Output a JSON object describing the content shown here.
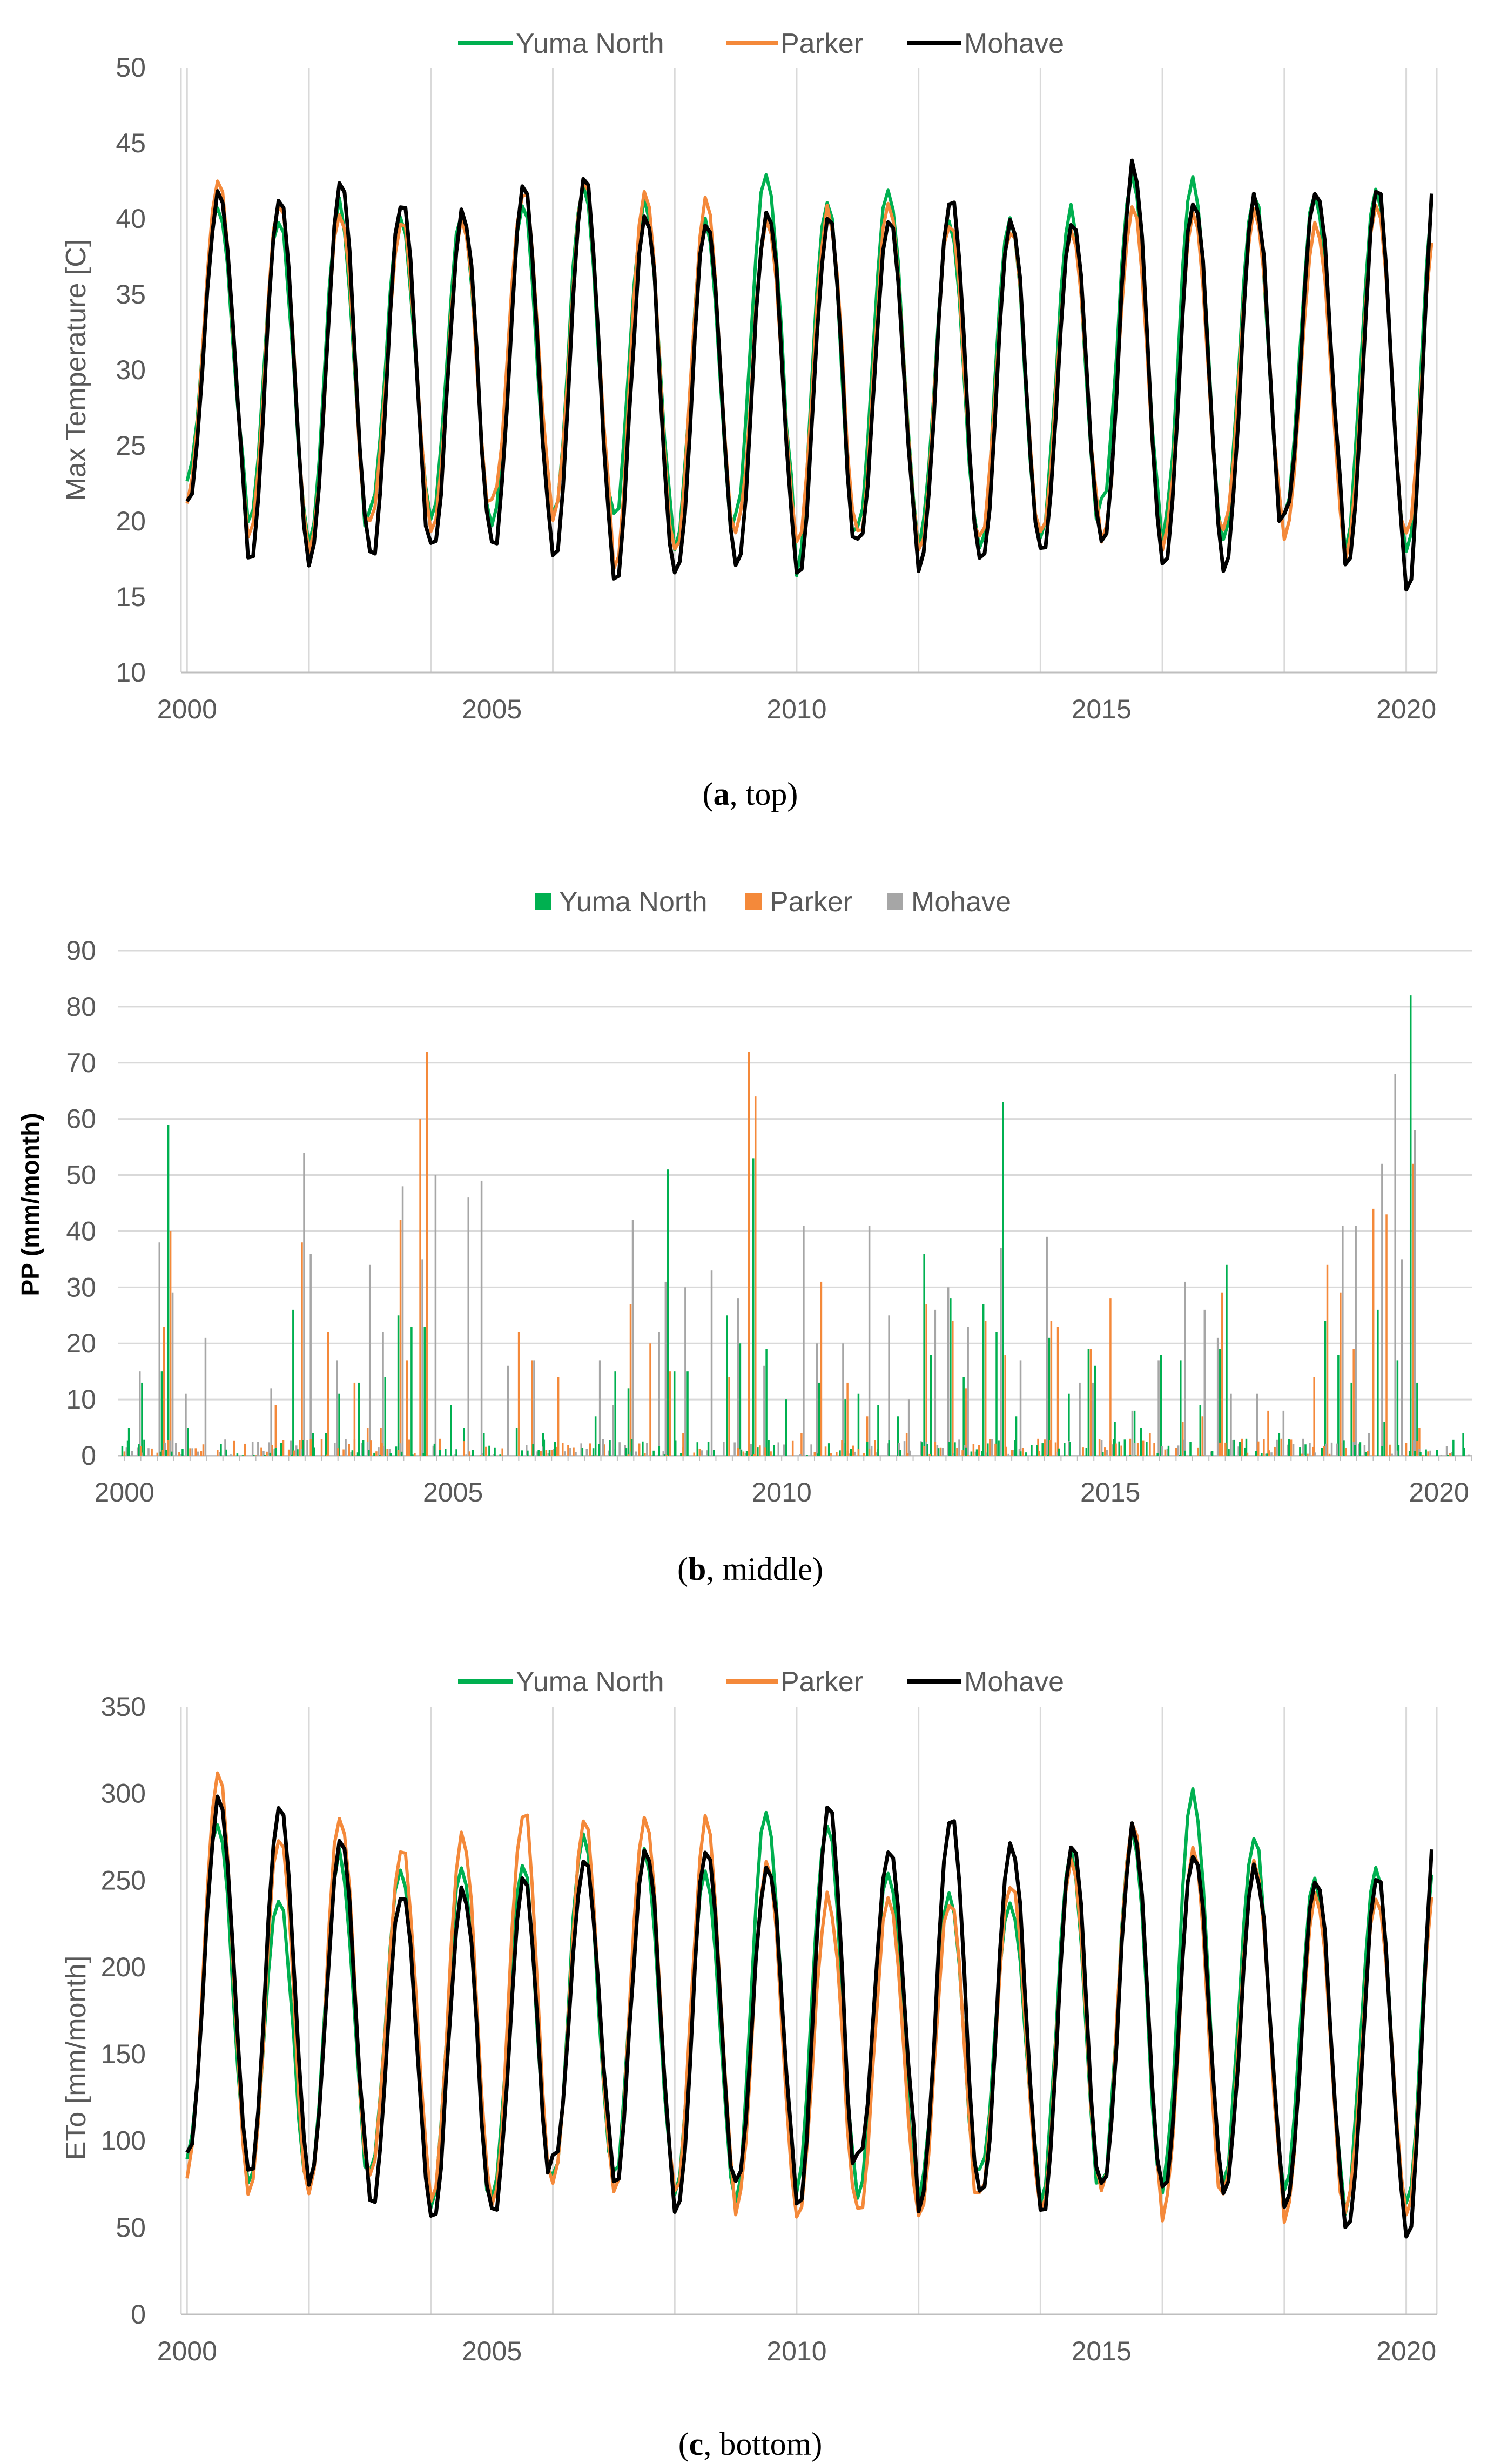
{
  "colors": {
    "yuma_north": "#00b050",
    "parker": "#f4893a",
    "mohave": "#000000",
    "mohave_bar": "#a6a6a6"
  },
  "chart_data": [
    {
      "type": "line",
      "ylabel": "Max Temperature [C]",
      "caption_letter": "a",
      "caption_rest": ", top)",
      "ylim": [
        10,
        50
      ],
      "yticks": [
        "10",
        "15",
        "20",
        "25",
        "30",
        "35",
        "40",
        "45",
        "50"
      ],
      "xlim": [
        1999.9,
        2020.5
      ],
      "xticks": [
        "2000",
        "2005",
        "2010",
        "2015",
        "2020"
      ],
      "legend": [
        "Yuma North",
        "Parker",
        "Mohave"
      ],
      "grid": "vertical",
      "seasonal_model": {
        "yuma_north": {
          "min": [
            22.5,
            19.5,
            18.5,
            20.5,
            20.0,
            19.5,
            20.5,
            20.0,
            18.0,
            21.0,
            17.0,
            20.0,
            18.5,
            18.0,
            19.0,
            21.0,
            19.0,
            19.0,
            20.5,
            18.5,
            17.5
          ],
          "max": [
            41.0,
            40.0,
            41.0,
            40.0,
            40.5,
            41.0,
            42.0,
            41.0,
            40.0,
            43.0,
            41.5,
            42.0,
            39.5,
            40.5,
            40.5,
            42.5,
            42.5,
            42.0,
            41.5,
            42.5,
            43.5
          ]
        },
        "parker": {
          "min": [
            21.5,
            18.5,
            18.0,
            20.0,
            19.0,
            21.0,
            20.0,
            17.0,
            17.5,
            19.5,
            18.5,
            19.0,
            18.0,
            19.0,
            19.5,
            18.5,
            18.5,
            19.5,
            19.0,
            17.5,
            19.5
          ],
          "max": [
            42.5,
            41.0,
            40.5,
            40.0,
            40.0,
            42.0,
            42.5,
            42.0,
            41.5,
            40.0,
            40.5,
            41.0,
            40.0,
            39.5,
            39.5,
            41.0,
            40.0,
            40.5,
            40.0,
            41.0,
            41.0
          ]
        },
        "mohave": {
          "min": [
            21.0,
            17.0,
            17.5,
            17.5,
            18.0,
            18.0,
            17.5,
            16.0,
            16.5,
            17.5,
            16.0,
            18.5,
            17.0,
            17.0,
            18.0,
            18.0,
            17.0,
            17.0,
            20.5,
            16.5,
            15.5
          ],
          "max": [
            41.5,
            41.0,
            42.0,
            41.5,
            40.5,
            42.0,
            42.5,
            40.5,
            40.0,
            41.0,
            40.0,
            40.0,
            41.5,
            40.0,
            40.0,
            43.5,
            41.5,
            41.5,
            42.0,
            42.0,
            44.5
          ]
        }
      }
    },
    {
      "type": "bar",
      "ylabel": "PP (mm/month)",
      "caption_letter": "b",
      "caption_rest": ", middle)",
      "ylim": [
        0,
        90
      ],
      "yticks": [
        "0",
        "10",
        "20",
        "30",
        "40",
        "50",
        "60",
        "70",
        "80",
        "90"
      ],
      "xlim": [
        1999.9,
        2020.5
      ],
      "xticks": [
        "2000",
        "2005",
        "2010",
        "2015",
        "2020"
      ],
      "legend": [
        "Yuma North",
        "Parker",
        "Mohave"
      ],
      "grid": "horizontal",
      "series": [
        {
          "name": "Yuma North",
          "points": [
            [
              2000.1,
              5
            ],
            [
              2000.3,
              13
            ],
            [
              2000.6,
              15
            ],
            [
              2000.7,
              59
            ],
            [
              2001.0,
              5
            ],
            [
              2002.6,
              26
            ],
            [
              2002.9,
              4
            ],
            [
              2003.1,
              4
            ],
            [
              2003.3,
              11
            ],
            [
              2003.6,
              13
            ],
            [
              2004.0,
              14
            ],
            [
              2004.2,
              25
            ],
            [
              2004.4,
              23
            ],
            [
              2004.6,
              23
            ],
            [
              2005.0,
              9
            ],
            [
              2005.2,
              5
            ],
            [
              2005.5,
              4
            ],
            [
              2006.0,
              5
            ],
            [
              2006.4,
              4
            ],
            [
              2007.2,
              7
            ],
            [
              2007.5,
              15
            ],
            [
              2007.7,
              12
            ],
            [
              2008.3,
              51
            ],
            [
              2008.4,
              15
            ],
            [
              2008.6,
              15
            ],
            [
              2009.2,
              25
            ],
            [
              2009.4,
              20
            ],
            [
              2009.6,
              53
            ],
            [
              2009.8,
              19
            ],
            [
              2010.1,
              10
            ],
            [
              2010.6,
              13
            ],
            [
              2011.0,
              10
            ],
            [
              2011.2,
              11
            ],
            [
              2011.5,
              9
            ],
            [
              2011.8,
              7
            ],
            [
              2012.2,
              36
            ],
            [
              2012.3,
              18
            ],
            [
              2012.6,
              28
            ],
            [
              2012.8,
              14
            ],
            [
              2013.1,
              27
            ],
            [
              2013.3,
              22
            ],
            [
              2013.4,
              63
            ],
            [
              2013.6,
              7
            ],
            [
              2014.1,
              21
            ],
            [
              2014.4,
              11
            ],
            [
              2014.7,
              19
            ],
            [
              2014.8,
              16
            ],
            [
              2015.1,
              6
            ],
            [
              2015.4,
              8
            ],
            [
              2015.5,
              5
            ],
            [
              2015.8,
              18
            ],
            [
              2016.1,
              17
            ],
            [
              2016.4,
              9
            ],
            [
              2016.7,
              19
            ],
            [
              2016.8,
              34
            ],
            [
              2017.1,
              3
            ],
            [
              2017.6,
              4
            ],
            [
              2018.0,
              2
            ],
            [
              2018.3,
              24
            ],
            [
              2018.5,
              18
            ],
            [
              2018.7,
              13
            ],
            [
              2019.1,
              26
            ],
            [
              2019.2,
              6
            ],
            [
              2019.4,
              17
            ],
            [
              2019.6,
              82
            ],
            [
              2019.7,
              13
            ],
            [
              2020.4,
              4
            ]
          ]
        },
        {
          "name": "Parker",
          "points": [
            [
              2000.6,
              23
            ],
            [
              2000.7,
              40
            ],
            [
              2001.2,
              2
            ],
            [
              2002.3,
              9
            ],
            [
              2002.7,
              38
            ],
            [
              2003.1,
              22
            ],
            [
              2003.5,
              13
            ],
            [
              2003.7,
              5
            ],
            [
              2003.9,
              5
            ],
            [
              2004.2,
              42
            ],
            [
              2004.3,
              17
            ],
            [
              2004.5,
              60
            ],
            [
              2004.6,
              72
            ],
            [
              2004.8,
              3
            ],
            [
              2006.0,
              22
            ],
            [
              2006.2,
              17
            ],
            [
              2006.6,
              14
            ],
            [
              2007.3,
              2
            ],
            [
              2007.7,
              27
            ],
            [
              2008.0,
              20
            ],
            [
              2008.3,
              15
            ],
            [
              2008.5,
              4
            ],
            [
              2009.2,
              14
            ],
            [
              2009.5,
              72
            ],
            [
              2009.6,
              64
            ],
            [
              2010.3,
              4
            ],
            [
              2010.6,
              31
            ],
            [
              2011.0,
              13
            ],
            [
              2011.3,
              7
            ],
            [
              2011.9,
              4
            ],
            [
              2012.2,
              27
            ],
            [
              2012.6,
              24
            ],
            [
              2012.8,
              12
            ],
            [
              2013.1,
              24
            ],
            [
              2013.4,
              18
            ],
            [
              2013.9,
              3
            ],
            [
              2014.1,
              24
            ],
            [
              2014.2,
              23
            ],
            [
              2014.7,
              19
            ],
            [
              2015.0,
              28
            ],
            [
              2015.3,
              3
            ],
            [
              2015.6,
              4
            ],
            [
              2016.1,
              6
            ],
            [
              2016.4,
              7
            ],
            [
              2016.7,
              29
            ],
            [
              2017.0,
              3
            ],
            [
              2017.4,
              8
            ],
            [
              2017.6,
              3
            ],
            [
              2018.1,
              14
            ],
            [
              2018.3,
              34
            ],
            [
              2018.5,
              29
            ],
            [
              2018.7,
              19
            ],
            [
              2019.0,
              44
            ],
            [
              2019.2,
              43
            ],
            [
              2019.6,
              52
            ],
            [
              2019.7,
              5
            ]
          ]
        },
        {
          "name": "Mohave",
          "points": [
            [
              2000.2,
              15
            ],
            [
              2000.5,
              38
            ],
            [
              2000.7,
              29
            ],
            [
              2000.9,
              11
            ],
            [
              2001.2,
              21
            ],
            [
              2002.2,
              12
            ],
            [
              2002.7,
              54
            ],
            [
              2002.8,
              36
            ],
            [
              2003.2,
              17
            ],
            [
              2003.7,
              34
            ],
            [
              2003.9,
              22
            ],
            [
              2004.2,
              48
            ],
            [
              2004.5,
              35
            ],
            [
              2004.7,
              50
            ],
            [
              2005.2,
              46
            ],
            [
              2005.4,
              49
            ],
            [
              2005.8,
              16
            ],
            [
              2006.2,
              17
            ],
            [
              2007.2,
              17
            ],
            [
              2007.4,
              9
            ],
            [
              2007.7,
              42
            ],
            [
              2008.1,
              22
            ],
            [
              2008.2,
              31
            ],
            [
              2008.5,
              30
            ],
            [
              2008.9,
              33
            ],
            [
              2009.3,
              28
            ],
            [
              2009.7,
              16
            ],
            [
              2010.3,
              41
            ],
            [
              2010.5,
              20
            ],
            [
              2010.9,
              20
            ],
            [
              2011.3,
              41
            ],
            [
              2011.6,
              25
            ],
            [
              2011.9,
              10
            ],
            [
              2012.3,
              26
            ],
            [
              2012.5,
              30
            ],
            [
              2012.8,
              23
            ],
            [
              2013.3,
              37
            ],
            [
              2013.6,
              17
            ],
            [
              2014.0,
              39
            ],
            [
              2014.5,
              13
            ],
            [
              2014.7,
              13
            ],
            [
              2015.3,
              8
            ],
            [
              2015.7,
              17
            ],
            [
              2016.1,
              31
            ],
            [
              2016.4,
              26
            ],
            [
              2016.6,
              21
            ],
            [
              2016.8,
              11
            ],
            [
              2017.2,
              11
            ],
            [
              2017.6,
              8
            ],
            [
              2017.9,
              3
            ],
            [
              2018.5,
              41
            ],
            [
              2018.7,
              41
            ],
            [
              2018.9,
              4
            ],
            [
              2019.1,
              52
            ],
            [
              2019.3,
              68
            ],
            [
              2019.4,
              35
            ],
            [
              2019.6,
              58
            ]
          ]
        }
      ]
    },
    {
      "type": "line",
      "ylabel": "ETo [mm/month]",
      "caption_letter": "c",
      "caption_rest": ", bottom)",
      "ylim": [
        0,
        350
      ],
      "yticks": [
        "0",
        "50",
        "100",
        "150",
        "200",
        "250",
        "300",
        "350"
      ],
      "xlim": [
        1999.9,
        2020.5
      ],
      "xticks": [
        "2000",
        "2005",
        "2010",
        "2015",
        "2020"
      ],
      "legend": [
        "Yuma North",
        "Parker",
        "Mohave"
      ],
      "grid": "vertical",
      "seasonal_model": {
        "yuma_north": {
          "min": [
            88,
            72,
            75,
            80,
            60,
            65,
            80,
            78,
            68,
            70,
            75,
            70,
            68,
            82,
            65,
            72,
            75,
            78,
            72,
            62,
            60
          ],
          "max": [
            285,
            240,
            265,
            255,
            260,
            260,
            275,
            265,
            255,
            290,
            285,
            255,
            240,
            240,
            265,
            275,
            300,
            278,
            250,
            262,
            272
          ]
        },
        "parker": {
          "min": [
            82,
            65,
            70,
            80,
            62,
            58,
            75,
            72,
            65,
            60,
            55,
            58,
            56,
            70,
            62,
            70,
            58,
            70,
            55,
            60,
            60
          ],
          "max": [
            312,
            275,
            288,
            270,
            278,
            292,
            285,
            288,
            288,
            262,
            240,
            240,
            240,
            250,
            265,
            285,
            265,
            260,
            245,
            240,
            265
          ]
        },
        "mohave": {
          "min": [
            90,
            78,
            78,
            62,
            52,
            56,
            90,
            75,
            58,
            80,
            58,
            90,
            62,
            66,
            58,
            70,
            72,
            72,
            62,
            45,
            45
          ],
          "max": [
            295,
            290,
            270,
            245,
            245,
            250,
            260,
            270,
            270,
            262,
            292,
            268,
            288,
            272,
            273,
            280,
            268,
            258,
            252,
            252,
            292
          ]
        }
      }
    }
  ]
}
